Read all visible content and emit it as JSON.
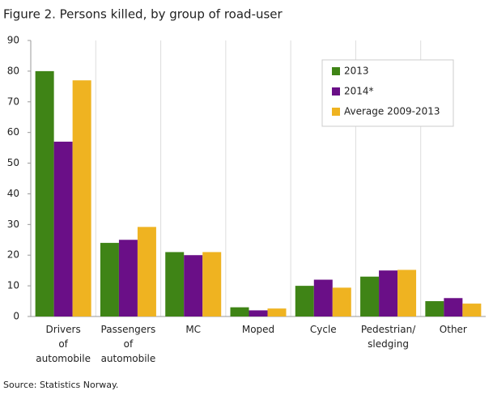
{
  "chart_data": {
    "type": "bar",
    "title": "Figure 2. Persons killed, by group of road-user",
    "source": "Source: Statistics Norway.",
    "categories": [
      "Drivers\nof\nautomobile",
      "Passengers\nof\nautomobile",
      "MC",
      "Moped",
      "Cycle",
      "Pedestrian/\nsledging",
      "Other"
    ],
    "series": [
      {
        "name": "2013",
        "color": "#3f8416",
        "values": [
          80,
          24,
          21,
          3,
          10,
          13,
          5
        ]
      },
      {
        "name": "2014*",
        "color": "#6a0f87",
        "values": [
          57,
          25,
          20,
          2,
          12,
          15,
          6
        ]
      },
      {
        "name": "Average 2009-2013",
        "color": "#efb321",
        "values": [
          77,
          29.2,
          21,
          2.6,
          9.4,
          15.2,
          4.2
        ]
      }
    ],
    "ylim": [
      0,
      90
    ],
    "yticks": [
      0,
      10,
      20,
      30,
      40,
      50,
      60,
      70,
      80,
      90
    ],
    "legend": "top-right"
  }
}
